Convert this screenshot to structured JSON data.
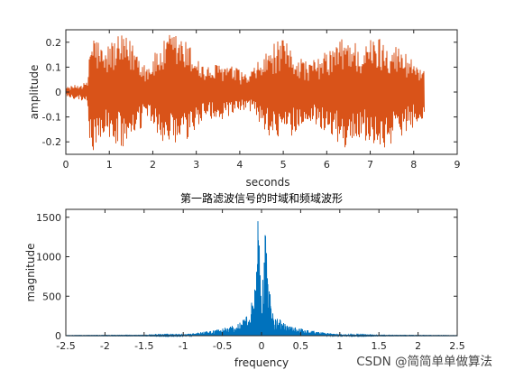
{
  "chart_data": [
    {
      "type": "line",
      "title": "",
      "xlabel": "seconds",
      "ylabel": "amplitude",
      "xlim": [
        0,
        9
      ],
      "ylim": [
        -0.25,
        0.25
      ],
      "x_ticks": [
        0,
        1,
        2,
        3,
        4,
        5,
        6,
        7,
        8,
        9
      ],
      "x_tick_labels": [
        "0",
        "1",
        "2",
        "3",
        "4",
        "5",
        "6",
        "7",
        "8",
        "9"
      ],
      "y_ticks": [
        0.2,
        0.1,
        0,
        -0.1,
        -0.2
      ],
      "y_tick_labels": [
        "0.2",
        "0.1",
        "0",
        "-0.1",
        "-0.2"
      ],
      "grid": false,
      "series": [
        {
          "color": "#d95319",
          "x_range": [
            0,
            8.25
          ],
          "envelope": [
            {
              "x": 0.0,
              "y": 0.02
            },
            {
              "x": 0.5,
              "y": 0.04
            },
            {
              "x": 0.55,
              "y": 0.22
            },
            {
              "x": 0.65,
              "y": 0.25
            },
            {
              "x": 0.9,
              "y": 0.16
            },
            {
              "x": 1.0,
              "y": 0.21
            },
            {
              "x": 1.3,
              "y": 0.23
            },
            {
              "x": 1.6,
              "y": 0.2
            },
            {
              "x": 1.85,
              "y": 0.11
            },
            {
              "x": 2.1,
              "y": 0.17
            },
            {
              "x": 2.4,
              "y": 0.24
            },
            {
              "x": 2.6,
              "y": 0.24
            },
            {
              "x": 3.0,
              "y": 0.16
            },
            {
              "x": 3.2,
              "y": 0.1
            },
            {
              "x": 3.6,
              "y": 0.12
            },
            {
              "x": 3.9,
              "y": 0.1
            },
            {
              "x": 4.2,
              "y": 0.07
            },
            {
              "x": 4.5,
              "y": 0.14
            },
            {
              "x": 4.8,
              "y": 0.2
            },
            {
              "x": 5.0,
              "y": 0.21
            },
            {
              "x": 5.3,
              "y": 0.16
            },
            {
              "x": 5.6,
              "y": 0.12
            },
            {
              "x": 5.9,
              "y": 0.15
            },
            {
              "x": 6.2,
              "y": 0.2
            },
            {
              "x": 6.5,
              "y": 0.24
            },
            {
              "x": 6.8,
              "y": 0.18
            },
            {
              "x": 7.1,
              "y": 0.23
            },
            {
              "x": 7.4,
              "y": 0.22
            },
            {
              "x": 7.7,
              "y": 0.18
            },
            {
              "x": 8.0,
              "y": 0.14
            },
            {
              "x": 8.25,
              "y": 0.1
            }
          ]
        }
      ]
    },
    {
      "type": "line",
      "title": "第一路滤波信号的时域和频域波形",
      "xlabel": "frequency",
      "ylabel": "magnitude",
      "xlim": [
        -2.5,
        2.5
      ],
      "ylim": [
        0,
        1600
      ],
      "x_ticks": [
        -2.5,
        -2,
        -1.5,
        -1,
        -0.5,
        0,
        0.5,
        1,
        1.5,
        2,
        2.5
      ],
      "x_tick_labels": [
        "-2.5",
        "-2",
        "-1.5",
        "-1",
        "-0.5",
        "0",
        "0.5",
        "1",
        "1.5",
        "2",
        "2.5"
      ],
      "y_ticks": [
        1500,
        1000,
        500,
        0
      ],
      "y_tick_labels": [
        "1500",
        "1000",
        "500",
        "0"
      ],
      "grid": false,
      "series": [
        {
          "color": "#0072bd",
          "x_range": [
            -2.5,
            2.5
          ],
          "envelope": [
            {
              "x": -2.5,
              "y": 2
            },
            {
              "x": -1.5,
              "y": 5
            },
            {
              "x": -1.0,
              "y": 15
            },
            {
              "x": -0.8,
              "y": 40
            },
            {
              "x": -0.5,
              "y": 90
            },
            {
              "x": -0.3,
              "y": 150
            },
            {
              "x": -0.15,
              "y": 300
            },
            {
              "x": -0.08,
              "y": 700
            },
            {
              "x": -0.04,
              "y": 1600
            },
            {
              "x": 0.0,
              "y": 500
            },
            {
              "x": 0.04,
              "y": 1600
            },
            {
              "x": 0.08,
              "y": 700
            },
            {
              "x": 0.15,
              "y": 300
            },
            {
              "x": 0.3,
              "y": 150
            },
            {
              "x": 0.5,
              "y": 90
            },
            {
              "x": 0.8,
              "y": 40
            },
            {
              "x": 1.0,
              "y": 15
            },
            {
              "x": 1.5,
              "y": 5
            },
            {
              "x": 2.5,
              "y": 2
            }
          ]
        }
      ]
    }
  ],
  "watermark": "CSDN @简简单单做算法"
}
